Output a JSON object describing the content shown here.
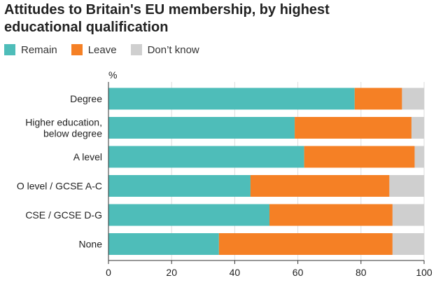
{
  "chart_data": {
    "type": "bar",
    "orientation": "horizontal",
    "stacked": true,
    "title_lines": [
      "Attitudes to Britain's EU membership, by highest",
      "educational qualification"
    ],
    "unit_label": "%",
    "categories": [
      [
        "Degree"
      ],
      [
        "Higher education,",
        "below degree"
      ],
      [
        "A level"
      ],
      [
        "O level / GCSE A-C"
      ],
      [
        "CSE / GCSE D-G"
      ],
      [
        "None"
      ]
    ],
    "series": [
      {
        "name": "Remain",
        "color": "#4ebdb9",
        "values": [
          78,
          59,
          62,
          45,
          51,
          35
        ]
      },
      {
        "name": "Leave",
        "color": "#f58025",
        "values": [
          15,
          37,
          35,
          44,
          39,
          55
        ]
      },
      {
        "name": "Don’t know",
        "color": "#cfcfcf",
        "values": [
          7,
          4,
          3,
          11,
          10,
          10
        ]
      }
    ],
    "xlim": [
      0,
      100
    ],
    "xticks": [
      0,
      20,
      40,
      60,
      80,
      100
    ],
    "xgrid": true,
    "legend_position": "top-left"
  }
}
